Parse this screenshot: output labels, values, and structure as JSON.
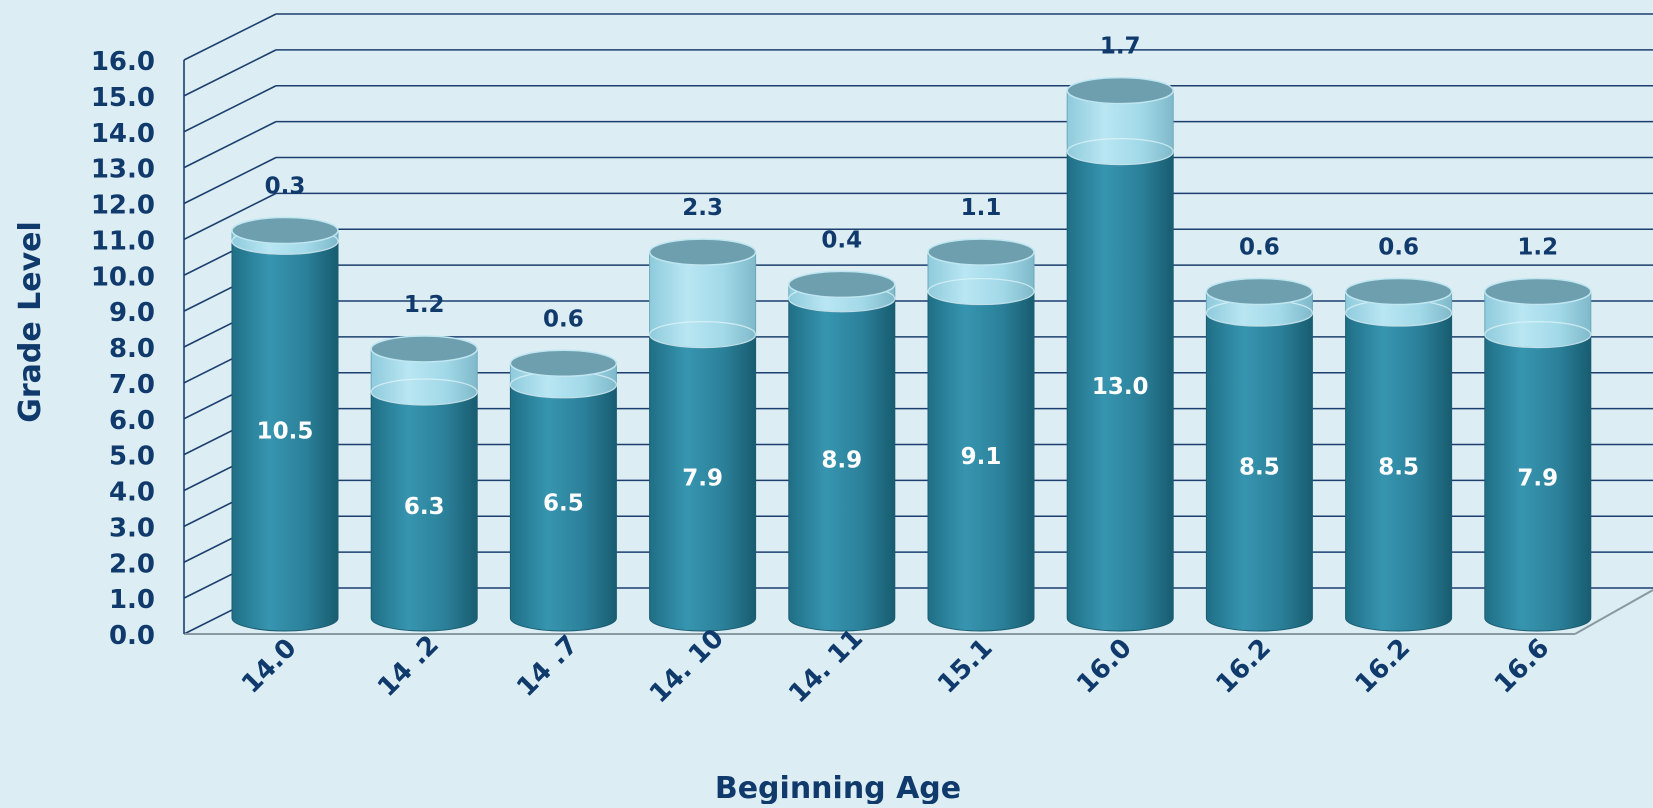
{
  "colors": {
    "background": "#dcedf4",
    "text": "#0f3a6b",
    "gridline": "#1c3f6e",
    "base_series": "#2e8aa4",
    "gain_series": "#a5dbea",
    "value_label": "#ffffff"
  },
  "chart_data": {
    "type": "bar",
    "stacked": true,
    "style": "3d-cylinder",
    "title": "",
    "xlabel": "Beginning Age",
    "ylabel": "Grade Level",
    "ylim": [
      0,
      16
    ],
    "yticks": [
      "0.0",
      "1.0",
      "2.0",
      "3.0",
      "4.0",
      "5.0",
      "6.0",
      "7.0",
      "8.0",
      "9.0",
      "10.0",
      "11.0",
      "12.0",
      "13.0",
      "14.0",
      "15.0",
      "16.0"
    ],
    "grid": true,
    "legend": "none",
    "categories": [
      "14.0",
      "14 .2",
      "14 .7",
      "14. 10",
      "14. 11",
      "15.1",
      "16.0",
      "16.2",
      "16.2",
      "16.6"
    ],
    "series": [
      {
        "values": [
          10.5,
          6.3,
          6.5,
          7.9,
          8.9,
          9.1,
          13.0,
          8.5,
          8.5,
          7.9
        ]
      },
      {
        "values": [
          0.3,
          1.2,
          0.6,
          2.3,
          0.4,
          1.1,
          1.7,
          0.6,
          0.6,
          1.2
        ]
      }
    ],
    "base_labels": [
      "10.5",
      "6.3",
      "6.5",
      "7.9",
      "8.9",
      "9.1",
      "13.0",
      "8.5",
      "8.5",
      "7.9"
    ],
    "gain_labels": [
      "0.3",
      "1.2",
      "0.6",
      "2.3",
      "0.4",
      "1.1",
      "1.7",
      "0.6",
      "0.6",
      "1.2"
    ]
  }
}
